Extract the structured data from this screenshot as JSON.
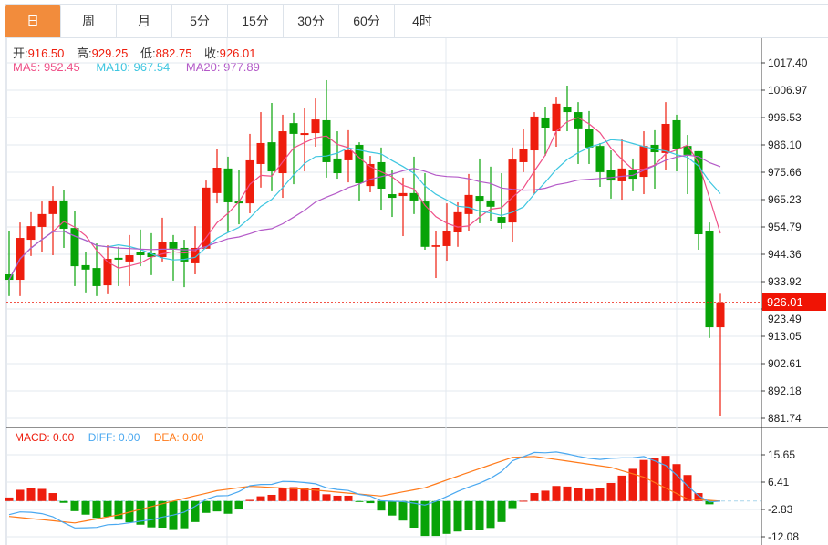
{
  "tabs": [
    {
      "label": "日",
      "active": true
    },
    {
      "label": "周"
    },
    {
      "label": "月"
    },
    {
      "label": "5分"
    },
    {
      "label": "15分"
    },
    {
      "label": "30分"
    },
    {
      "label": "60分"
    },
    {
      "label": "4时"
    }
  ],
  "ohlc_legend": {
    "open_label": "开:",
    "open": "916.50",
    "high_label": "高:",
    "high": "929.25",
    "low_label": "低:",
    "low": "882.75",
    "close_label": "收:",
    "close": "926.01"
  },
  "ma_legend": {
    "ma5": "MA5: 952.45",
    "ma10": "MA10: 967.54",
    "ma20": "MA20: 977.89"
  },
  "macd_legend": {
    "macd": "MACD: 0.00",
    "diff": "DIFF: 0.00",
    "dea": "DEA: 0.00"
  },
  "current_price_label": "926.01",
  "colors": {
    "up": "#ee1d0d",
    "down": "#08a308",
    "ma5": "#ef4f87",
    "ma10": "#3ec6e0",
    "ma20": "#b45ac8",
    "diff": "#4aa8f0",
    "dea": "#ff7a1a",
    "active_tab": "#f28c3c"
  },
  "chart_data": [
    {
      "type": "candlestick",
      "title": "",
      "ylim": [
        881.74,
        1017.4
      ],
      "yticks": [
        "1017.40",
        "1006.97",
        "996.53",
        "986.10",
        "975.66",
        "965.23",
        "954.79",
        "944.36",
        "933.92",
        "923.49",
        "913.05",
        "902.61",
        "892.18",
        "881.74"
      ],
      "current_price": 926.01,
      "ma_periods": [
        5,
        10,
        20
      ],
      "ohlc": [
        [
          936.7,
          934.6,
          953.4,
          928.4
        ],
        [
          934.6,
          950.6,
          956.5,
          928.4
        ],
        [
          949.9,
          955.1,
          960.4,
          943.7
        ],
        [
          954.8,
          959.7,
          964.5,
          945.1
        ],
        [
          959.7,
          964.9,
          970.4,
          944.0
        ],
        [
          964.9,
          954.1,
          968.7,
          946.8
        ],
        [
          954.4,
          939.8,
          960.7,
          932.2
        ],
        [
          940.2,
          938.5,
          945.4,
          929.8
        ],
        [
          939.1,
          932.2,
          948.5,
          928.4
        ],
        [
          932.5,
          942.6,
          947.8,
          929.1
        ],
        [
          943.0,
          942.3,
          947.2,
          932.2
        ],
        [
          941.6,
          944.0,
          951.7,
          932.2
        ],
        [
          945.1,
          944.0,
          953.8,
          939.8
        ],
        [
          944.7,
          943.3,
          952.4,
          936.4
        ],
        [
          943.3,
          948.9,
          958.3,
          941.6
        ],
        [
          948.9,
          946.5,
          951.7,
          934.3
        ],
        [
          946.8,
          941.6,
          949.9,
          931.8
        ],
        [
          940.9,
          946.8,
          955.1,
          936.7
        ],
        [
          946.5,
          969.8,
          972.5,
          946.5
        ],
        [
          967.7,
          977.4,
          984.7,
          963.8
        ],
        [
          977.1,
          964.2,
          981.6,
          952.7
        ],
        [
          964.5,
          963.8,
          976.7,
          955.8
        ],
        [
          963.8,
          980.2,
          990.3,
          960.0
        ],
        [
          978.8,
          986.8,
          998.6,
          969.8
        ],
        [
          987.1,
          976.0,
          1002.1,
          968.4
        ],
        [
          975.3,
          991.3,
          997.6,
          965.9
        ],
        [
          994.4,
          990.3,
          998.3,
          971.1
        ],
        [
          989.9,
          990.6,
          1000.0,
          976.0
        ],
        [
          990.6,
          995.8,
          1003.8,
          985.4
        ],
        [
          995.5,
          979.5,
          1010.8,
          973.6
        ],
        [
          980.9,
          975.3,
          991.3,
          973.2
        ],
        [
          980.2,
          984.0,
          991.7,
          971.8
        ],
        [
          986.1,
          971.5,
          987.1,
          964.9
        ],
        [
          970.4,
          978.8,
          981.9,
          968.0
        ],
        [
          979.5,
          969.4,
          985.1,
          961.4
        ],
        [
          967.3,
          965.9,
          976.7,
          958.6
        ],
        [
          966.6,
          967.7,
          973.6,
          951.3
        ],
        [
          967.7,
          964.9,
          981.6,
          959.7
        ],
        [
          964.5,
          947.2,
          975.3,
          946.1
        ],
        [
          947.2,
          947.8,
          953.4,
          935.3
        ],
        [
          947.5,
          953.4,
          963.8,
          941.9
        ],
        [
          952.7,
          960.4,
          964.2,
          947.2
        ],
        [
          959.7,
          967.0,
          975.0,
          953.4
        ],
        [
          966.6,
          964.5,
          980.9,
          956.2
        ],
        [
          964.9,
          962.5,
          977.8,
          956.9
        ],
        [
          958.6,
          956.2,
          975.3,
          954.1
        ],
        [
          956.5,
          980.5,
          985.1,
          949.2
        ],
        [
          979.5,
          984.7,
          992.0,
          975.7
        ],
        [
          984.0,
          996.9,
          998.6,
          967.3
        ],
        [
          996.2,
          992.7,
          1000.7,
          981.9
        ],
        [
          991.3,
          1001.8,
          1004.5,
          985.4
        ],
        [
          1000.7,
          998.6,
          1008.7,
          991.3
        ],
        [
          998.6,
          992.4,
          1002.4,
          978.8
        ],
        [
          992.0,
          985.1,
          999.0,
          978.8
        ],
        [
          985.7,
          975.7,
          986.8,
          970.1
        ],
        [
          976.7,
          972.5,
          984.0,
          965.6
        ],
        [
          972.2,
          977.1,
          988.5,
          965.2
        ],
        [
          976.7,
          973.2,
          980.9,
          968.4
        ],
        [
          973.9,
          985.7,
          991.3,
          967.3
        ],
        [
          986.1,
          983.3,
          991.7,
          969.4
        ],
        [
          983.0,
          994.1,
          1002.4,
          976.4
        ],
        [
          995.5,
          984.7,
          997.6,
          976.0
        ],
        [
          985.7,
          982.3,
          989.9,
          967.3
        ],
        [
          983.7,
          952.0,
          983.7,
          946.1
        ],
        [
          953.4,
          916.5,
          956.5,
          912.4
        ],
        [
          916.5,
          926.01,
          929.25,
          882.75
        ]
      ]
    },
    {
      "type": "bar+line",
      "title": "MACD",
      "ylim": [
        -12.08,
        15.65
      ],
      "yticks": [
        "15.65",
        "6.41",
        "-2.83",
        "-12.08"
      ],
      "macd_hist": [
        1.2,
        3.8,
        4.3,
        4.1,
        2.7,
        -0.6,
        -3.4,
        -4.6,
        -5.7,
        -5.3,
        -6.3,
        -7.2,
        -8.0,
        -8.9,
        -9.0,
        -9.5,
        -9.2,
        -7.1,
        -4.0,
        -3.5,
        -4.3,
        -2.6,
        0.4,
        1.6,
        2.1,
        4.5,
        4.7,
        4.5,
        4.3,
        2.3,
        1.8,
        1.8,
        -0.2,
        -0.7,
        -3.2,
        -4.9,
        -6.6,
        -9.0,
        -11.8,
        -11.8,
        -11.1,
        -10.3,
        -9.9,
        -9.9,
        -9.1,
        -7.1,
        -2.4,
        0.1,
        2.7,
        3.5,
        5.1,
        4.9,
        4.3,
        4.0,
        4.3,
        6.1,
        8.6,
        10.9,
        13.9,
        14.7,
        15.3,
        12.5,
        8.8,
        2.7,
        -1.1,
        0.0
      ],
      "dea_points": [
        [
          0,
          -5.2
        ],
        [
          6,
          -7.4
        ],
        [
          10,
          -4.7
        ],
        [
          15,
          0
        ],
        [
          19,
          3.5
        ],
        [
          22,
          5.0
        ],
        [
          27,
          4.0
        ],
        [
          34,
          1.7
        ],
        [
          38,
          4.5
        ],
        [
          42,
          9.7
        ],
        [
          46,
          14.8
        ],
        [
          48,
          15.1
        ],
        [
          55,
          11.4
        ],
        [
          58,
          8.1
        ],
        [
          62,
          0.7
        ],
        [
          65,
          0
        ]
      ]
    }
  ]
}
